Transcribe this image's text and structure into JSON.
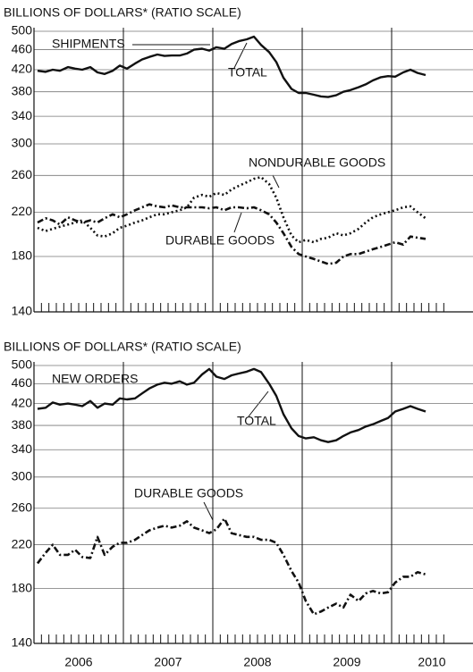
{
  "chart_data": [
    {
      "type": "line",
      "title": "BILLIONS OF DOLLARS* (RATIO SCALE)",
      "log_scale": true,
      "grid": true,
      "annotations": [
        "SHIPMENTS",
        "TOTAL",
        "NONDURABLE GOODS",
        "DURABLE GOODS"
      ],
      "ylim": [
        140,
        500
      ],
      "yticks": [
        140,
        180,
        220,
        260,
        300,
        340,
        380,
        420,
        460,
        500
      ],
      "xlim": [
        2006,
        2010.91
      ],
      "xgrid": [
        2007,
        2008,
        2009,
        2010
      ],
      "x": [
        2006.04,
        2006.13,
        2006.21,
        2006.29,
        2006.38,
        2006.46,
        2006.54,
        2006.63,
        2006.71,
        2006.79,
        2006.88,
        2006.96,
        2007.04,
        2007.13,
        2007.21,
        2007.29,
        2007.38,
        2007.46,
        2007.54,
        2007.63,
        2007.71,
        2007.79,
        2007.88,
        2007.96,
        2008.04,
        2008.13,
        2008.21,
        2008.29,
        2008.38,
        2008.46,
        2008.54,
        2008.63,
        2008.71,
        2008.79,
        2008.88,
        2008.96,
        2009.04,
        2009.13,
        2009.21,
        2009.29,
        2009.38,
        2009.46,
        2009.54,
        2009.63,
        2009.71,
        2009.79,
        2009.88,
        2009.96,
        2010.04,
        2010.13,
        2010.21,
        2010.29,
        2010.38
      ],
      "series": [
        {
          "name": "TOTAL",
          "color": "#111111",
          "style": "solid",
          "values": [
            418,
            416,
            420,
            418,
            425,
            422,
            420,
            425,
            415,
            412,
            418,
            428,
            422,
            432,
            440,
            445,
            450,
            447,
            448,
            448,
            452,
            460,
            462,
            458,
            465,
            462,
            472,
            478,
            482,
            488,
            470,
            455,
            435,
            405,
            385,
            378,
            378,
            375,
            372,
            371,
            374,
            380,
            383,
            388,
            393,
            400,
            406,
            408,
            407,
            415,
            420,
            414,
            410
          ]
        },
        {
          "name": "NONDURABLE GOODS",
          "color": "#111111",
          "style": "dotted",
          "values": [
            205,
            202,
            204,
            206,
            208,
            210,
            212,
            205,
            198,
            197,
            200,
            205,
            207,
            210,
            212,
            215,
            218,
            218,
            220,
            222,
            225,
            235,
            238,
            236,
            240,
            238,
            244,
            248,
            252,
            256,
            258,
            250,
            235,
            215,
            198,
            192,
            194,
            192,
            195,
            196,
            200,
            198,
            200,
            204,
            210,
            215,
            218,
            220,
            222,
            225,
            226,
            220,
            214
          ]
        },
        {
          "name": "DURABLE GOODS",
          "color": "#111111",
          "style": "dashdot",
          "values": [
            210,
            214,
            212,
            208,
            215,
            212,
            210,
            212,
            210,
            214,
            218,
            215,
            218,
            222,
            225,
            228,
            226,
            225,
            227,
            225,
            225,
            225,
            225,
            224,
            225,
            222,
            225,
            225,
            224,
            225,
            222,
            218,
            210,
            200,
            188,
            182,
            180,
            178,
            176,
            174,
            175,
            180,
            182,
            182,
            184,
            186,
            188,
            190,
            192,
            190,
            197,
            196,
            195
          ]
        }
      ]
    },
    {
      "type": "line",
      "title": "BILLIONS OF DOLLARS* (RATIO SCALE)",
      "log_scale": true,
      "grid": true,
      "annotations": [
        "NEW ORDERS",
        "TOTAL",
        "DURABLE GOODS"
      ],
      "ylim": [
        140,
        500
      ],
      "yticks": [
        140,
        180,
        220,
        260,
        300,
        340,
        380,
        420,
        460,
        500
      ],
      "xlim": [
        2006,
        2010.91
      ],
      "xgrid": [
        2007,
        2008,
        2009,
        2010
      ],
      "xticks": [
        {
          "value": 2006.5,
          "label": "2006"
        },
        {
          "value": 2007.5,
          "label": "2007"
        },
        {
          "value": 2008.5,
          "label": "2008"
        },
        {
          "value": 2009.5,
          "label": "2009"
        },
        {
          "value": 2010.45,
          "label": "2010"
        }
      ],
      "x": [
        2006.04,
        2006.13,
        2006.21,
        2006.29,
        2006.38,
        2006.46,
        2006.54,
        2006.63,
        2006.71,
        2006.79,
        2006.88,
        2006.96,
        2007.04,
        2007.13,
        2007.21,
        2007.29,
        2007.38,
        2007.46,
        2007.54,
        2007.63,
        2007.71,
        2007.79,
        2007.88,
        2007.96,
        2008.04,
        2008.13,
        2008.21,
        2008.29,
        2008.38,
        2008.46,
        2008.54,
        2008.63,
        2008.71,
        2008.79,
        2008.88,
        2008.96,
        2009.04,
        2009.13,
        2009.21,
        2009.29,
        2009.38,
        2009.46,
        2009.54,
        2009.63,
        2009.71,
        2009.79,
        2009.88,
        2009.96,
        2010.04,
        2010.13,
        2010.21,
        2010.29,
        2010.38
      ],
      "series": [
        {
          "name": "TOTAL",
          "color": "#111111",
          "style": "solid",
          "values": [
            410,
            412,
            422,
            418,
            420,
            418,
            415,
            425,
            412,
            420,
            418,
            430,
            428,
            430,
            440,
            450,
            458,
            462,
            460,
            465,
            458,
            462,
            480,
            492,
            475,
            470,
            478,
            482,
            486,
            492,
            485,
            460,
            435,
            400,
            375,
            362,
            358,
            360,
            355,
            352,
            355,
            362,
            368,
            372,
            378,
            382,
            388,
            393,
            405,
            410,
            415,
            410,
            405
          ]
        },
        {
          "name": "DURABLE GOODS",
          "color": "#111111",
          "style": "dashdot",
          "values": [
            202,
            212,
            220,
            210,
            210,
            215,
            208,
            207,
            228,
            210,
            218,
            222,
            222,
            225,
            230,
            235,
            238,
            240,
            238,
            240,
            245,
            238,
            235,
            232,
            236,
            248,
            232,
            230,
            228,
            228,
            225,
            225,
            222,
            210,
            195,
            185,
            170,
            160,
            162,
            165,
            168,
            165,
            175,
            170,
            176,
            178,
            176,
            177,
            185,
            190,
            190,
            194,
            192
          ]
        }
      ]
    }
  ]
}
